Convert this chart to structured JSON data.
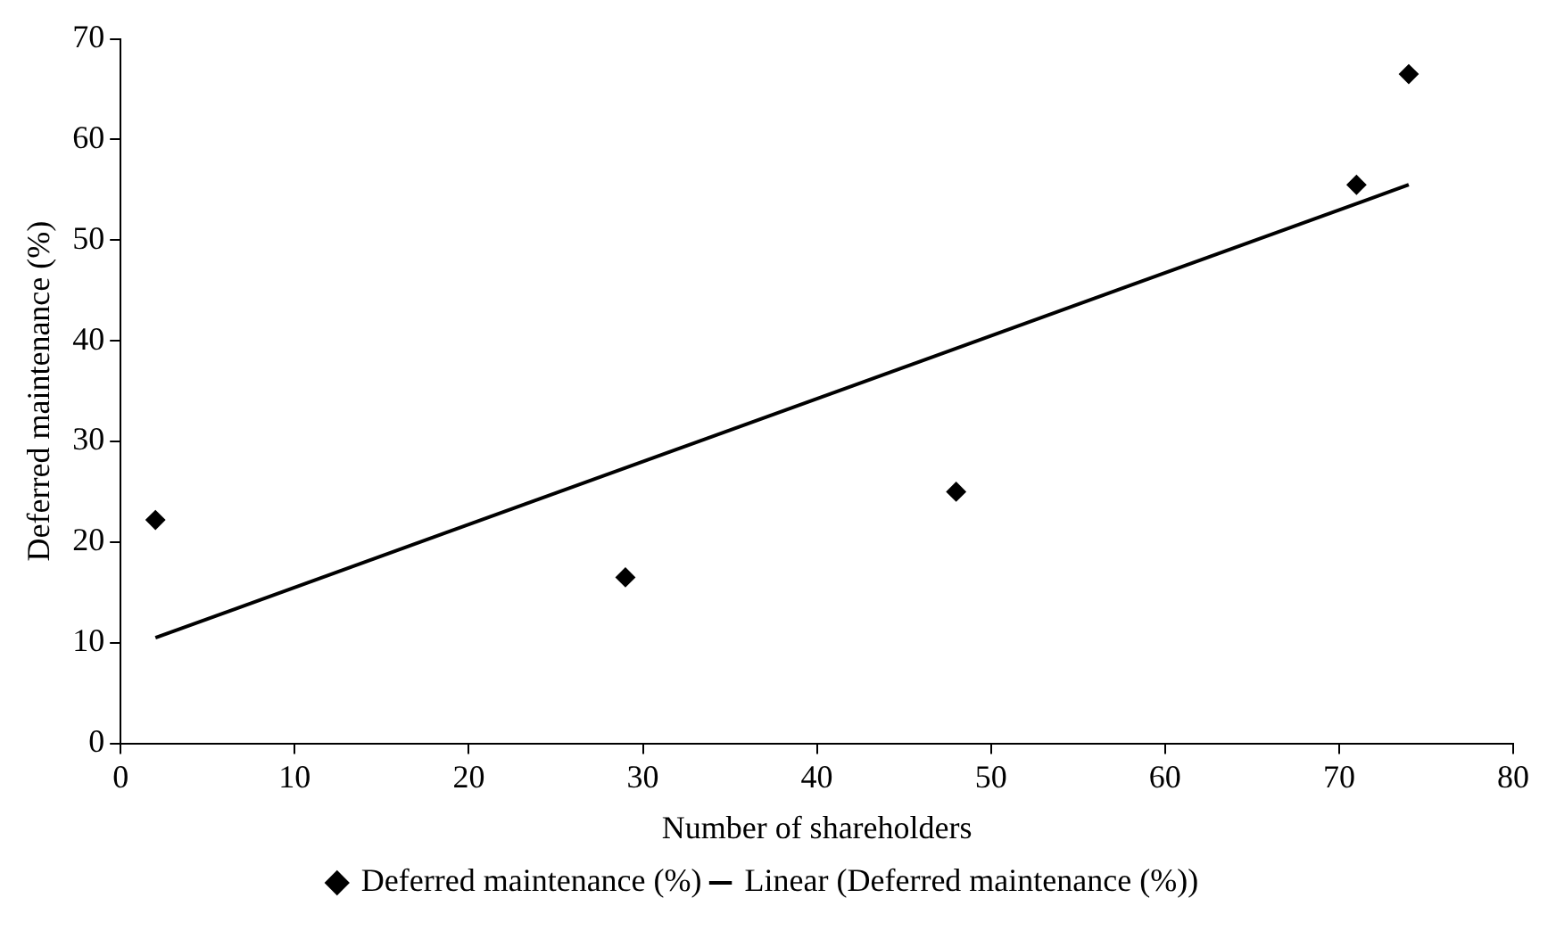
{
  "chart_data": {
    "type": "scatter",
    "xlabel": "Number of shareholders",
    "ylabel": "Deferred maintenance (%)",
    "xlim": [
      0,
      80
    ],
    "xticks": [
      0,
      10,
      20,
      30,
      40,
      50,
      60,
      70,
      80
    ],
    "ylim": [
      0,
      70
    ],
    "yticks": [
      0,
      10,
      20,
      30,
      40,
      50,
      60,
      70
    ],
    "grid": false,
    "legend": "bottom",
    "series": [
      {
        "name": "Deferred maintenance (%)",
        "color": "#000000",
        "marker": "diamond",
        "x": [
          2,
          29,
          48,
          71,
          74
        ],
        "values": [
          22.2,
          16.5,
          25,
          55.5,
          66.5
        ]
      },
      {
        "name": "Linear (Deferred maintenance (%))",
        "type": "line",
        "color": "#000000",
        "marker": "none",
        "x": [
          2,
          74
        ],
        "values": [
          10.5,
          55.5
        ]
      }
    ]
  }
}
